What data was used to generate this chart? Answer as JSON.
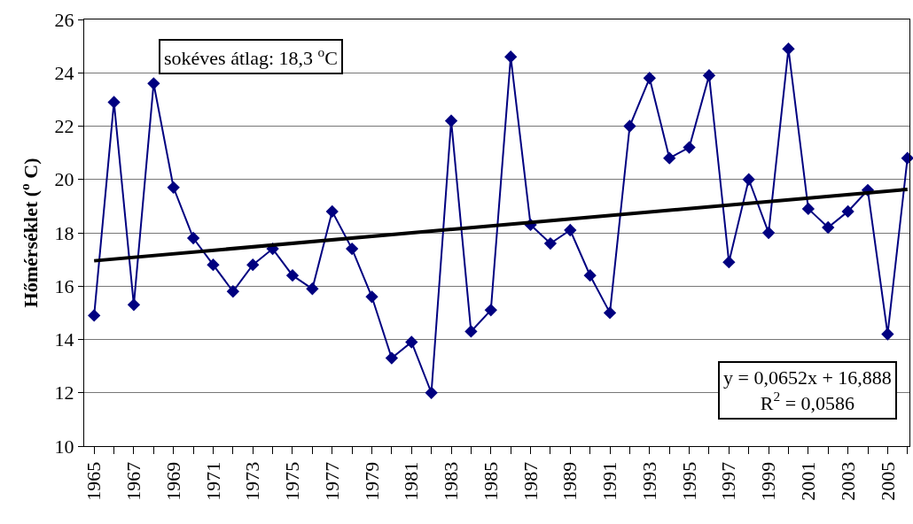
{
  "chart_data": {
    "type": "line",
    "ylabel": "Hőmérséklet ($^{o}$ C)",
    "x": [
      1965,
      1966,
      1967,
      1968,
      1969,
      1970,
      1971,
      1972,
      1973,
      1974,
      1975,
      1976,
      1977,
      1978,
      1979,
      1980,
      1981,
      1982,
      1983,
      1984,
      1985,
      1986,
      1987,
      1988,
      1989,
      1990,
      1991,
      1992,
      1993,
      1994,
      1995,
      1996,
      1997,
      1998,
      1999,
      2000,
      2001,
      2002,
      2003,
      2004,
      2005,
      2006
    ],
    "series": [
      {
        "color": "#000080",
        "marker": "diamond",
        "values": [
          14.9,
          22.9,
          15.3,
          23.6,
          19.7,
          17.8,
          16.8,
          15.8,
          16.8,
          17.4,
          16.4,
          15.9,
          18.8,
          17.4,
          15.6,
          13.3,
          13.9,
          12.0,
          22.2,
          14.3,
          15.1,
          24.6,
          18.3,
          17.6,
          18.1,
          16.4,
          15.0,
          22.0,
          23.8,
          20.8,
          21.2,
          23.9,
          16.9,
          20.0,
          18.0,
          24.9,
          18.9,
          18.2,
          18.8,
          19.6,
          14.2,
          20.8
        ]
      },
      {
        "type": "line",
        "color": "#000000",
        "marker": "none",
        "x": [
          1965,
          2006
        ],
        "values": [
          16.95,
          19.63
        ]
      }
    ],
    "xlim": [
      1964.5,
      2006.1
    ],
    "xticks": [
      1965,
      {
        "value": 1966,
        "label": null
      },
      1967,
      {
        "value": 1968,
        "label": null
      },
      1969,
      {
        "value": 1970,
        "label": null
      },
      1971,
      {
        "value": 1972,
        "label": null
      },
      1973,
      {
        "value": 1974,
        "label": null
      },
      1975,
      {
        "value": 1976,
        "label": null
      },
      1977,
      {
        "value": 1978,
        "label": null
      },
      1979,
      {
        "value": 1980,
        "label": null
      },
      1981,
      {
        "value": 1982,
        "label": null
      },
      1983,
      {
        "value": 1984,
        "label": null
      },
      1985,
      {
        "value": 1986,
        "label": null
      },
      1987,
      {
        "value": 1988,
        "label": null
      },
      1989,
      {
        "value": 1990,
        "label": null
      },
      1991,
      {
        "value": 1992,
        "label": null
      },
      1993,
      {
        "value": 1994,
        "label": null
      },
      1995,
      {
        "value": 1996,
        "label": null
      },
      1997,
      {
        "value": 1998,
        "label": null
      },
      1999,
      {
        "value": 2000,
        "label": null
      },
      2001,
      {
        "value": 2002,
        "label": null
      },
      2003,
      {
        "value": 2004,
        "label": null
      },
      2005,
      {
        "value": 2006,
        "label": null
      }
    ],
    "ylim": [
      10,
      26
    ],
    "yticks": [
      10,
      12,
      14,
      16,
      18,
      20,
      22,
      24,
      26
    ],
    "grid": "y",
    "annotations": [
      "sokéves átlag: 18,3 $^{o}$C",
      "y = 0,0652x + 16,888\nR$^{2}$ = 0,0586"
    ]
  }
}
